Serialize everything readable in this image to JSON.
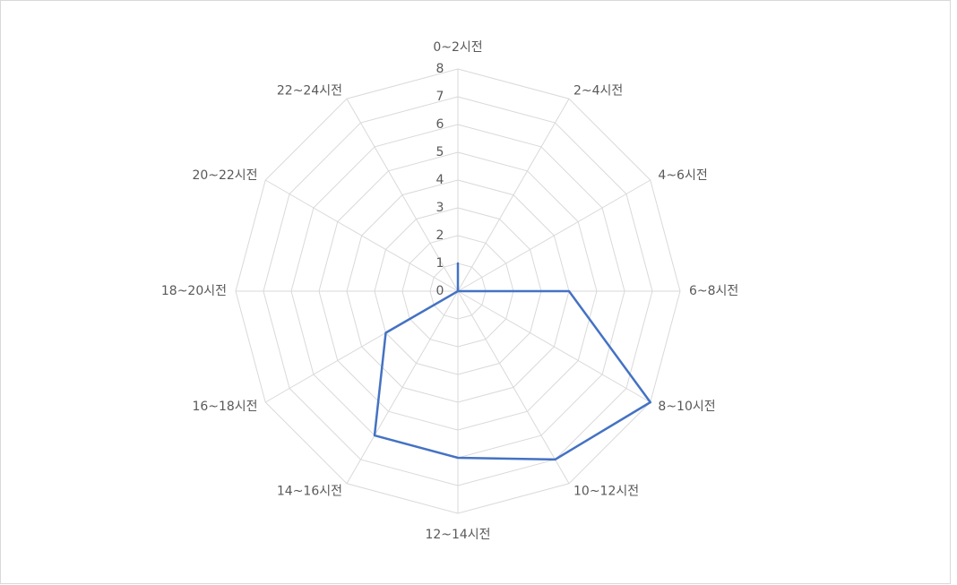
{
  "chart_data": {
    "type": "radar",
    "categories": [
      "0~2시전",
      "2~4시전",
      "4~6시전",
      "6~8시전",
      "8~10시전",
      "10~12시전",
      "12~14시전",
      "14~16시전",
      "16~18시전",
      "18~20시전",
      "20~22시전",
      "22~24시전"
    ],
    "values": [
      1,
      0,
      0,
      4,
      8,
      7,
      6,
      6,
      3,
      0,
      0,
      0
    ],
    "color": "#4472c4",
    "ylim": [
      0,
      8
    ],
    "yticks": [
      0,
      1,
      2,
      3,
      4,
      5,
      6,
      7,
      8
    ],
    "grid": true
  }
}
